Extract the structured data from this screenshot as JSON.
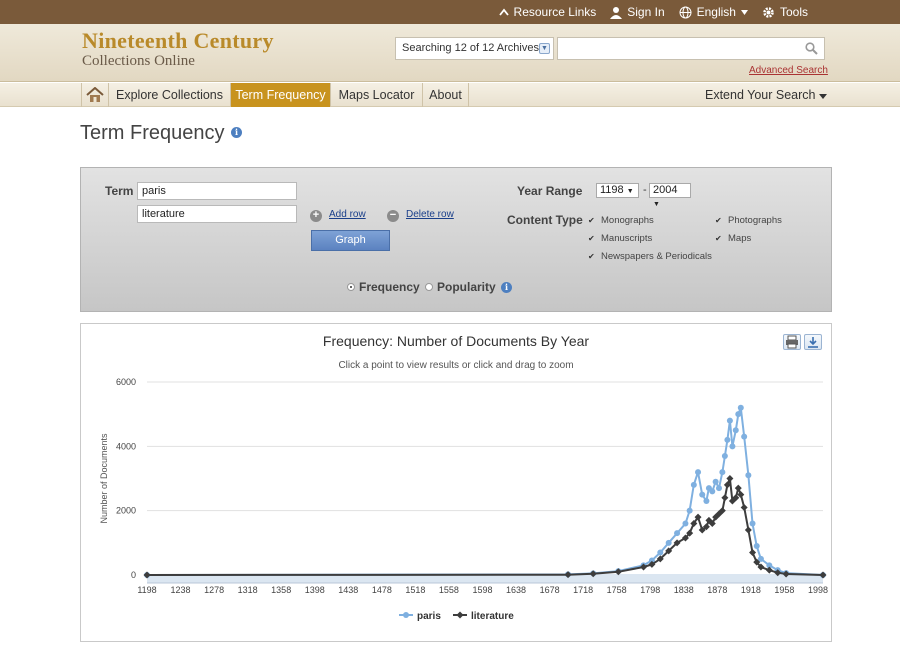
{
  "topbar": {
    "resource_links": "Resource Links",
    "sign_in": "Sign In",
    "language": "English",
    "tools": "Tools"
  },
  "header": {
    "logo_line1": "Nineteenth Century",
    "logo_line2": "Collections Online",
    "archive_select": "Searching 12 of 12 Archives",
    "search_value": "",
    "advanced_search": "Advanced Search"
  },
  "nav": {
    "items": [
      "Explore Collections",
      "Term Frequency",
      "Maps Locator",
      "About"
    ],
    "active": "Term Frequency",
    "extend": "Extend Your Search"
  },
  "page": {
    "title": "Term Frequency"
  },
  "form": {
    "term_label": "Term",
    "term1": "paris",
    "term2": "literature",
    "add_row": "Add row",
    "delete_row": "Delete row",
    "graph_button": "Graph",
    "year_range_label": "Year Range",
    "year_from": "1198",
    "year_to": "2004",
    "year_sep": "-",
    "content_type_label": "Content Type",
    "content_types": [
      {
        "label": "Monographs",
        "checked": true
      },
      {
        "label": "Photographs",
        "checked": true
      },
      {
        "label": "Manuscripts",
        "checked": true
      },
      {
        "label": "Maps",
        "checked": true
      },
      {
        "label": "Newspapers & Periodicals",
        "checked": true
      }
    ],
    "mode_frequency": "Frequency",
    "mode_popularity": "Popularity",
    "selected_mode": "Frequency"
  },
  "chart_data": {
    "type": "line",
    "title": "Frequency: Number of Documents By Year",
    "subtitle": "Click a point to view results or click and drag to zoom",
    "xlabel": "",
    "ylabel": "Number of Documents",
    "xlim": [
      1198,
      2004
    ],
    "ylim": [
      0,
      6000
    ],
    "yticks": [
      0,
      2000,
      4000,
      6000
    ],
    "xticks": [
      1198,
      1238,
      1278,
      1318,
      1358,
      1398,
      1438,
      1478,
      1518,
      1558,
      1598,
      1638,
      1678,
      1718,
      1758,
      1798,
      1838,
      1878,
      1918,
      1958,
      1998
    ],
    "grid": true,
    "legend": "bottom",
    "series": [
      {
        "name": "paris",
        "color": "#7fb0e0",
        "x": [
          1198,
          1700,
          1730,
          1760,
          1790,
          1800,
          1810,
          1820,
          1830,
          1840,
          1845,
          1850,
          1855,
          1860,
          1865,
          1868,
          1872,
          1876,
          1880,
          1884,
          1887,
          1890,
          1893,
          1896,
          1900,
          1903,
          1906,
          1910,
          1915,
          1920,
          1925,
          1930,
          1940,
          1950,
          1960,
          2004
        ],
        "y": [
          0,
          20,
          50,
          120,
          300,
          450,
          700,
          1000,
          1300,
          1600,
          2000,
          2800,
          3200,
          2500,
          2300,
          2700,
          2600,
          2900,
          2700,
          3200,
          3700,
          4200,
          4800,
          4000,
          4500,
          5000,
          5200,
          4300,
          3100,
          1600,
          900,
          500,
          300,
          150,
          60,
          0
        ]
      },
      {
        "name": "literature",
        "color": "#3d3d3d",
        "x": [
          1198,
          1700,
          1730,
          1760,
          1790,
          1800,
          1810,
          1820,
          1830,
          1840,
          1845,
          1850,
          1855,
          1860,
          1865,
          1868,
          1872,
          1876,
          1880,
          1884,
          1887,
          1890,
          1893,
          1896,
          1900,
          1903,
          1906,
          1910,
          1915,
          1920,
          1925,
          1930,
          1940,
          1950,
          1960,
          2004
        ],
        "y": [
          0,
          10,
          40,
          100,
          250,
          330,
          500,
          750,
          1000,
          1150,
          1300,
          1600,
          1800,
          1400,
          1500,
          1700,
          1600,
          1800,
          1900,
          2000,
          2400,
          2800,
          3000,
          2300,
          2400,
          2700,
          2500,
          2100,
          1400,
          700,
          400,
          250,
          150,
          70,
          30,
          0
        ]
      }
    ]
  }
}
